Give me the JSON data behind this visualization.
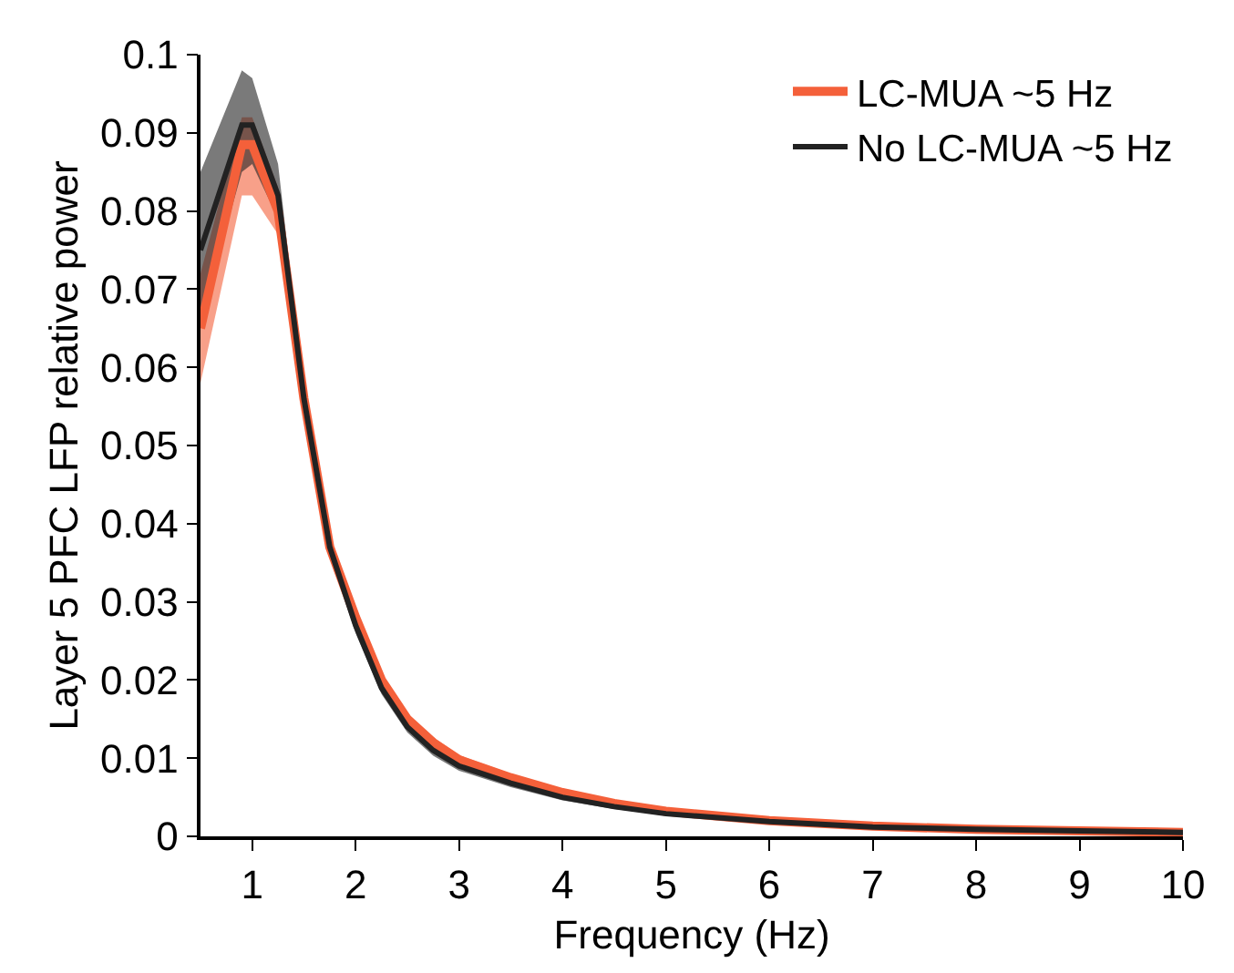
{
  "chart_data": {
    "type": "line",
    "xlabel": "Frequency (Hz)",
    "ylabel": "Layer 5 PFC LFP relative power",
    "x": [
      0.5,
      0.9,
      1.0,
      1.25,
      1.5,
      1.75,
      2,
      2.25,
      2.5,
      2.75,
      3,
      3.5,
      4,
      4.5,
      5,
      6,
      7,
      8,
      9,
      10
    ],
    "series": [
      {
        "name": "LC-MUA ~5 Hz",
        "color": "#f4603a",
        "values": [
          0.065,
          0.0885,
          0.0885,
          0.08,
          0.056,
          0.037,
          0.028,
          0.02,
          0.015,
          0.012,
          0.0098,
          0.0075,
          0.0056,
          0.0042,
          0.0032,
          0.002,
          0.0013,
          0.0009,
          0.0007,
          0.0005
        ],
        "lower": [
          0.058,
          0.082,
          0.082,
          0.077,
          0.055,
          0.036,
          0.027,
          0.0192,
          0.0143,
          0.0113,
          0.0092,
          0.007,
          0.0052,
          0.0039,
          0.003,
          0.0018,
          0.0012,
          0.0008,
          0.0006,
          0.0004
        ],
        "upper": [
          0.072,
          0.092,
          0.092,
          0.083,
          0.057,
          0.038,
          0.029,
          0.0208,
          0.0157,
          0.0127,
          0.0104,
          0.008,
          0.006,
          0.0045,
          0.0034,
          0.0022,
          0.0014,
          0.001,
          0.0008,
          0.0006
        ]
      },
      {
        "name": "No LC-MUA ~5 Hz",
        "color": "#222222",
        "values": [
          0.075,
          0.091,
          0.091,
          0.082,
          0.056,
          0.037,
          0.027,
          0.019,
          0.014,
          0.011,
          0.009,
          0.0068,
          0.005,
          0.0038,
          0.0029,
          0.0019,
          0.0012,
          0.0009,
          0.0007,
          0.0005
        ],
        "lower": [
          0.066,
          0.085,
          0.086,
          0.079,
          0.055,
          0.036,
          0.026,
          0.0182,
          0.0133,
          0.0103,
          0.0084,
          0.0063,
          0.0046,
          0.0035,
          0.0027,
          0.0017,
          0.0011,
          0.0008,
          0.0006,
          0.0004
        ],
        "upper": [
          0.085,
          0.098,
          0.097,
          0.086,
          0.057,
          0.038,
          0.028,
          0.0198,
          0.0147,
          0.0117,
          0.0096,
          0.0073,
          0.0054,
          0.0041,
          0.0031,
          0.0021,
          0.0013,
          0.001,
          0.0008,
          0.0006
        ]
      }
    ],
    "xlim": [
      0.5,
      10
    ],
    "xticks": [
      1,
      2,
      3,
      4,
      5,
      6,
      7,
      8,
      9,
      10
    ],
    "ylim": [
      0,
      0.1
    ],
    "yticks": [
      0,
      0.01,
      0.02,
      0.03,
      0.04,
      0.05,
      0.06,
      0.07,
      0.08,
      0.09,
      0.1
    ],
    "grid": false,
    "legend": "top right",
    "marker": "none",
    "line_style": "solid"
  }
}
